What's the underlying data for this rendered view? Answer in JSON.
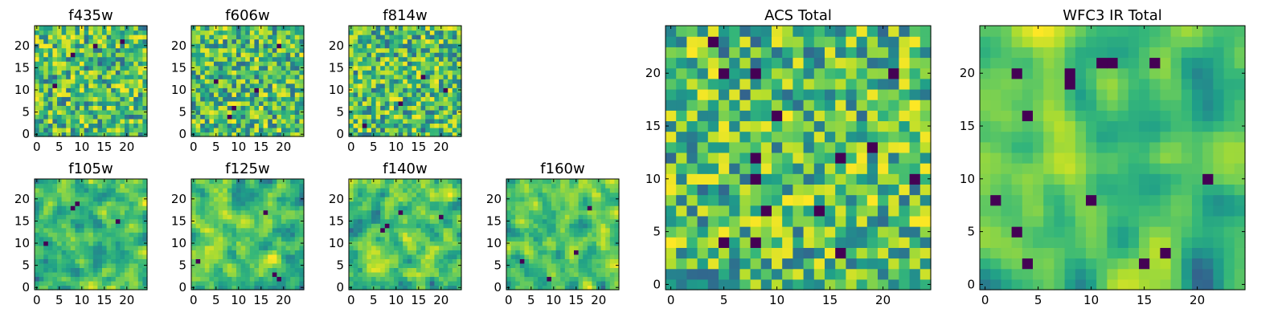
{
  "chart_data": [
    {
      "type": "heatmap",
      "title": "f435w",
      "xlabel": "",
      "ylabel": "",
      "xlim": [
        -0.5,
        24.5
      ],
      "ylim": [
        -0.5,
        24.5
      ],
      "xticks": [
        0,
        5,
        10,
        15,
        20
      ],
      "yticks": [
        0,
        5,
        10,
        15,
        20
      ],
      "colormap": "viridis",
      "size": 25,
      "seed": 11,
      "smooth": 0,
      "dark_pixels": [
        [
          8,
          18
        ],
        [
          13,
          20
        ],
        [
          19,
          21
        ],
        [
          4,
          11
        ]
      ]
    },
    {
      "type": "heatmap",
      "title": "f606w",
      "xlabel": "",
      "ylabel": "",
      "xlim": [
        -0.5,
        24.5
      ],
      "ylim": [
        -0.5,
        24.5
      ],
      "xticks": [
        0,
        5,
        10,
        15,
        20
      ],
      "yticks": [
        0,
        5,
        10,
        15,
        20
      ],
      "colormap": "viridis",
      "size": 25,
      "seed": 23,
      "smooth": 0,
      "dark_pixels": [
        [
          9,
          6
        ],
        [
          5,
          12
        ],
        [
          19,
          20
        ],
        [
          14,
          10
        ],
        [
          8,
          4
        ]
      ]
    },
    {
      "type": "heatmap",
      "title": "f814w",
      "xlabel": "",
      "ylabel": "",
      "xlim": [
        -0.5,
        24.5
      ],
      "ylim": [
        -0.5,
        24.5
      ],
      "xticks": [
        0,
        5,
        10,
        15,
        20
      ],
      "yticks": [
        0,
        5,
        10,
        15,
        20
      ],
      "colormap": "viridis",
      "size": 25,
      "seed": 37,
      "smooth": 0,
      "dark_pixels": [
        [
          3,
          2
        ],
        [
          11,
          7
        ],
        [
          21,
          10
        ],
        [
          16,
          13
        ]
      ]
    },
    {
      "type": "heatmap",
      "title": "f105w",
      "xlabel": "",
      "ylabel": "",
      "xlim": [
        -0.5,
        24.5
      ],
      "ylim": [
        -0.5,
        24.5
      ],
      "xticks": [
        0,
        5,
        10,
        15,
        20
      ],
      "yticks": [
        0,
        5,
        10,
        15,
        20
      ],
      "colormap": "viridis",
      "size": 25,
      "seed": 41,
      "smooth": 1,
      "dark_pixels": [
        [
          8,
          18
        ],
        [
          9,
          19
        ],
        [
          2,
          10
        ],
        [
          18,
          15
        ]
      ]
    },
    {
      "type": "heatmap",
      "title": "f125w",
      "xlabel": "",
      "ylabel": "",
      "xlim": [
        -0.5,
        24.5
      ],
      "ylim": [
        -0.5,
        24.5
      ],
      "xticks": [
        0,
        5,
        10,
        15,
        20
      ],
      "yticks": [
        0,
        5,
        10,
        15,
        20
      ],
      "colormap": "viridis",
      "size": 25,
      "seed": 53,
      "smooth": 1,
      "dark_pixels": [
        [
          18,
          3
        ],
        [
          19,
          2
        ],
        [
          16,
          17
        ],
        [
          1,
          6
        ]
      ]
    },
    {
      "type": "heatmap",
      "title": "f140w",
      "xlabel": "",
      "ylabel": "",
      "xlim": [
        -0.5,
        24.5
      ],
      "ylim": [
        -0.5,
        24.5
      ],
      "xticks": [
        0,
        5,
        10,
        15,
        20
      ],
      "yticks": [
        0,
        5,
        10,
        15,
        20
      ],
      "colormap": "viridis",
      "size": 25,
      "seed": 67,
      "smooth": 1,
      "dark_pixels": [
        [
          7,
          13
        ],
        [
          8,
          14
        ],
        [
          11,
          17
        ],
        [
          20,
          16
        ]
      ]
    },
    {
      "type": "heatmap",
      "title": "f160w",
      "xlabel": "",
      "ylabel": "",
      "xlim": [
        -0.5,
        24.5
      ],
      "ylim": [
        -0.5,
        24.5
      ],
      "xticks": [
        0,
        5,
        10,
        15,
        20
      ],
      "yticks": [
        0,
        5,
        10,
        15,
        20
      ],
      "colormap": "viridis",
      "size": 25,
      "seed": 79,
      "smooth": 1,
      "dark_pixels": [
        [
          18,
          18
        ],
        [
          15,
          8
        ],
        [
          3,
          6
        ],
        [
          9,
          2
        ]
      ]
    },
    {
      "type": "heatmap",
      "title": "ACS Total",
      "xlabel": "",
      "ylabel": "",
      "xlim": [
        -0.5,
        24.5
      ],
      "ylim": [
        -0.5,
        24.5
      ],
      "xticks": [
        0,
        5,
        10,
        15,
        20
      ],
      "yticks": [
        0,
        5,
        10,
        15,
        20
      ],
      "colormap": "viridis",
      "size": 25,
      "seed": 97,
      "smooth": 0,
      "dark_pixels": [
        [
          4,
          23
        ],
        [
          5,
          20
        ],
        [
          8,
          20
        ],
        [
          10,
          16
        ],
        [
          8,
          12
        ],
        [
          8,
          10
        ],
        [
          16,
          12
        ],
        [
          19,
          13
        ],
        [
          23,
          10
        ],
        [
          9,
          7
        ],
        [
          14,
          7
        ],
        [
          5,
          4
        ],
        [
          16,
          3
        ],
        [
          8,
          4
        ],
        [
          21,
          20
        ]
      ]
    },
    {
      "type": "heatmap",
      "title": "WFC3 IR Total",
      "xlabel": "",
      "ylabel": "",
      "xlim": [
        -0.5,
        24.5
      ],
      "ylim": [
        -0.5,
        24.5
      ],
      "xticks": [
        0,
        5,
        10,
        15,
        20
      ],
      "yticks": [
        0,
        5,
        10,
        15,
        20
      ],
      "colormap": "viridis",
      "size": 25,
      "seed": 131,
      "smooth": 2,
      "dark_pixels": [
        [
          11,
          21
        ],
        [
          12,
          21
        ],
        [
          8,
          19
        ],
        [
          8,
          20
        ],
        [
          3,
          20
        ],
        [
          16,
          21
        ],
        [
          4,
          16
        ],
        [
          21,
          10
        ],
        [
          1,
          8
        ],
        [
          3,
          5
        ],
        [
          10,
          8
        ],
        [
          4,
          2
        ],
        [
          15,
          2
        ],
        [
          17,
          3
        ]
      ]
    }
  ]
}
